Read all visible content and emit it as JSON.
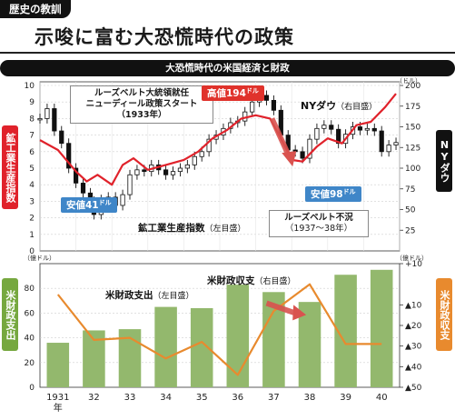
{
  "header": {
    "tag": "歴史の教訓",
    "title": "示唆に富む大恐慌時代の政策",
    "subtitle": "大恐慌時代の米国経済と財政"
  },
  "side_labels": {
    "industrial_production": "鉱工業生産指数",
    "ny_dow": "NYダウ",
    "federal_spending": "米財政支出",
    "federal_balance": "米財政収支"
  },
  "colors": {
    "industrial": "#e0222b",
    "dow": "#111111",
    "bars": "#93b86d",
    "balance": "#e88a2e",
    "arrow": "#d9534f",
    "low_badge": "#3f86c8",
    "high_badge": "#e0322b",
    "spending_box": "#76a83f",
    "balance_box": "#e88a2e"
  },
  "annotations": {
    "roosevelt": [
      "ルーズベルト大統領就任",
      "ニューディール政策スタート",
      "（1933年）"
    ],
    "high": "高値194",
    "high_unit": "ドル",
    "low41": "安値41",
    "low98": "安値98",
    "low_unit": "ドル",
    "nydow_label": "NYダウ",
    "nydow_axis": "（右目盛）",
    "ip_label": "鉱工業生産指数",
    "ip_axis": "（左目盛）",
    "recession": [
      "ルーズベルト不況",
      "（1937〜38年）"
    ],
    "spend_label": "米財政支出",
    "spend_axis": "（左目盛）",
    "bal_label": "米財政収支",
    "bal_axis": "（右目盛）"
  },
  "chart_data": [
    {
      "type": "line",
      "title": "大恐慌時代の米国経済と財政",
      "x_range": [
        1931,
        1941
      ],
      "y_left": {
        "label": "鉱工業生産指数",
        "range": [
          0,
          10
        ],
        "ticks": [
          0,
          1,
          2,
          3,
          4,
          5,
          6,
          7,
          8,
          9,
          10
        ]
      },
      "y_right": {
        "label": "NYダウ",
        "unit": "ドル",
        "range": [
          0,
          200
        ],
        "ticks": [
          0,
          25,
          50,
          75,
          100,
          125,
          150,
          175,
          200
        ]
      },
      "series": [
        {
          "name": "鉱工業生産指数",
          "axis": "left",
          "x": [
            1931.0,
            1931.5,
            1932.0,
            1932.3,
            1932.6,
            1933.0,
            1933.3,
            1933.6,
            1934.0,
            1934.5,
            1935.0,
            1935.4,
            1935.8,
            1936.2,
            1936.6,
            1937.0,
            1937.4,
            1937.7,
            1938.0,
            1938.3,
            1938.7,
            1939.0,
            1939.4,
            1939.8,
            1940.2,
            1940.6,
            1940.9
          ],
          "y": [
            6.7,
            6.1,
            4.8,
            4.2,
            4.6,
            4.0,
            5.2,
            5.6,
            4.9,
            5.2,
            5.5,
            6.0,
            6.8,
            7.3,
            8.0,
            8.2,
            8.0,
            6.8,
            5.5,
            5.4,
            6.3,
            6.8,
            6.5,
            7.6,
            7.8,
            8.7,
            9.5
          ]
        },
        {
          "name": "NYダウ",
          "axis": "right",
          "candlestick": true,
          "x": [
            1931.0,
            1931.2,
            1931.4,
            1931.6,
            1931.8,
            1932.0,
            1932.2,
            1932.4,
            1932.5,
            1932.7,
            1932.9,
            1933.1,
            1933.3,
            1933.5,
            1933.7,
            1933.9,
            1934.1,
            1934.3,
            1934.5,
            1934.7,
            1934.9,
            1935.1,
            1935.3,
            1935.5,
            1935.7,
            1935.9,
            1936.1,
            1936.3,
            1936.5,
            1936.7,
            1936.9,
            1937.1,
            1937.3,
            1937.5,
            1937.7,
            1937.9,
            1938.1,
            1938.3,
            1938.5,
            1938.7,
            1938.9,
            1939.1,
            1939.3,
            1939.5,
            1939.7,
            1939.9,
            1940.1,
            1940.3,
            1940.5,
            1940.7,
            1940.9
          ],
          "y": [
            160,
            172,
            145,
            130,
            100,
            82,
            70,
            60,
            44,
            62,
            65,
            55,
            68,
            92,
            98,
            96,
            104,
            98,
            92,
            96,
            100,
            104,
            114,
            120,
            135,
            140,
            148,
            155,
            157,
            168,
            180,
            188,
            182,
            170,
            140,
            122,
            120,
            112,
            135,
            148,
            152,
            147,
            130,
            141,
            150,
            146,
            148,
            145,
            120,
            128,
            131
          ]
        }
      ],
      "points": [
        {
          "label": "安値41",
          "x": 1932.5,
          "y": 41,
          "unit": "ドル"
        },
        {
          "label": "高値194",
          "x": 1937.1,
          "y": 194,
          "unit": "ドル"
        },
        {
          "label": "安値98",
          "x": 1938.25,
          "y": 98,
          "unit": "ドル"
        }
      ]
    },
    {
      "type": "bar",
      "categories": [
        "1931年",
        "32",
        "33",
        "34",
        "35",
        "36",
        "37",
        "38",
        "39",
        "40"
      ],
      "y_left": {
        "label": "米財政支出",
        "unit": "億ドル",
        "range": [
          0,
          100
        ],
        "ticks": [
          0,
          20,
          40,
          60,
          80
        ]
      },
      "y_right": {
        "label": "米財政収支",
        "unit": "億ドル",
        "range": [
          -50,
          10
        ],
        "ticks": [
          10,
          -10,
          -20,
          -30,
          -40,
          -50
        ]
      },
      "series": [
        {
          "name": "米財政支出",
          "axis": "left",
          "type": "bar",
          "values": [
            36,
            46,
            47,
            65,
            64,
            83,
            77,
            69,
            91,
            95
          ]
        },
        {
          "name": "米財政収支",
          "axis": "right",
          "type": "line",
          "values": [
            -5,
            -27,
            -26,
            -36,
            -28,
            -44,
            -13,
            0,
            -29,
            -29
          ]
        }
      ]
    }
  ]
}
